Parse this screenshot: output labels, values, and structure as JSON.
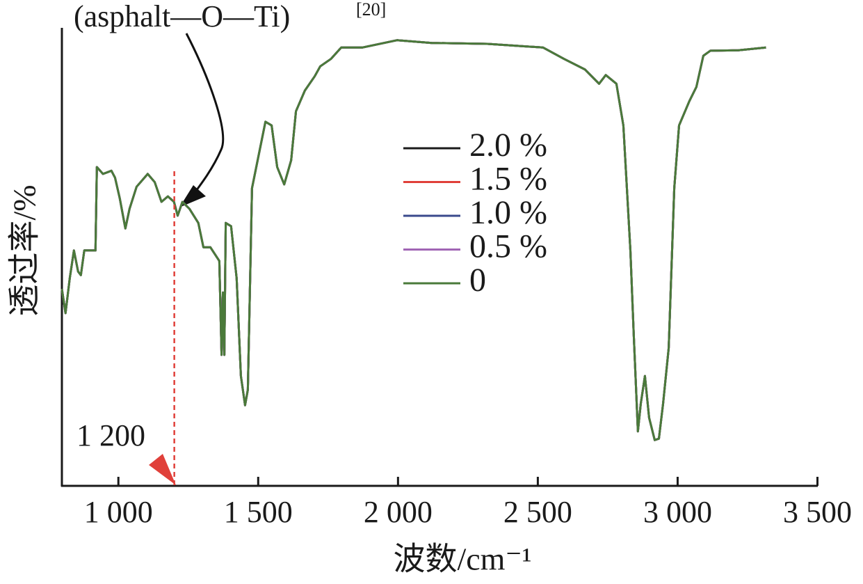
{
  "chart_data": {
    "type": "line",
    "xlabel": "波数/cm⁻¹",
    "ylabel": "透过率/%",
    "xlim": [
      798,
      3500
    ],
    "ylim": [
      0,
      100
    ],
    "xticks": [
      {
        "value": 1000,
        "label": "1 000"
      },
      {
        "value": 1500,
        "label": "1 500"
      },
      {
        "value": 2000,
        "label": "2 000"
      },
      {
        "value": 2500,
        "label": "2 500"
      },
      {
        "value": 3000,
        "label": "3 000"
      },
      {
        "value": 3500,
        "label": "3 500"
      }
    ],
    "annotations": [
      {
        "text": "(asphalt—O—Ti)",
        "ref": "[20]"
      },
      {
        "x": 1200,
        "label": "1 200"
      }
    ],
    "x": [
      798,
      811,
      826,
      841,
      856,
      866,
      878,
      918,
      923,
      945,
      975,
      988,
      1005,
      1025,
      1040,
      1065,
      1105,
      1130,
      1154,
      1177,
      1199,
      1212,
      1229,
      1254,
      1286,
      1304,
      1329,
      1361,
      1369,
      1374,
      1379,
      1384,
      1403,
      1423,
      1438,
      1453,
      1463,
      1478,
      1503,
      1526,
      1548,
      1568,
      1593,
      1618,
      1635,
      1667,
      1702,
      1722,
      1760,
      1797,
      1872,
      1996,
      2121,
      2320,
      2519,
      2594,
      2669,
      2719,
      2743,
      2781,
      2806,
      2831,
      2843,
      2858,
      2868,
      2883,
      2898,
      2918,
      2933,
      2948,
      2968,
      2988,
      3005,
      3042,
      3067,
      3092,
      3117,
      3217,
      3316
    ],
    "series": [
      {
        "name": "2.0 %",
        "color": "#1a1a1a",
        "values": [
          43.0,
          37.7,
          45.3,
          51.4,
          46.8,
          46.0,
          51.4,
          51.4,
          69.6,
          68.1,
          68.8,
          67.3,
          62.8,
          56.2,
          60.5,
          65.3,
          68.1,
          66.3,
          62.0,
          63.2,
          62.0,
          59.0,
          62.0,
          60.5,
          57.4,
          52.1,
          52.1,
          49.1,
          28.6,
          42.2,
          28.6,
          57.4,
          56.7,
          45.3,
          24.0,
          17.6,
          21.0,
          65.0,
          72.6,
          79.5,
          78.7,
          69.6,
          65.8,
          71.1,
          81.8,
          86.3,
          89.4,
          91.6,
          93.2,
          95.7,
          95.7,
          97.3,
          96.7,
          96.5,
          95.7,
          93.2,
          90.9,
          87.8,
          89.7,
          87.8,
          78.7,
          51.4,
          33.1,
          11.9,
          17.9,
          24.0,
          14.9,
          10.0,
          10.3,
          17.9,
          30.1,
          65.0,
          78.7,
          84.0,
          87.1,
          93.9,
          95.0,
          95.1,
          95.7
        ]
      },
      {
        "name": "1.5 %",
        "color": "#e0403a",
        "values": [
          43.0,
          37.7,
          45.3,
          51.4,
          46.8,
          46.0,
          51.4,
          51.4,
          69.6,
          68.1,
          68.8,
          67.3,
          62.8,
          56.2,
          60.5,
          65.3,
          68.1,
          66.3,
          62.0,
          63.2,
          62.0,
          59.0,
          62.0,
          60.5,
          57.4,
          52.1,
          52.1,
          49.1,
          28.6,
          42.2,
          28.6,
          57.4,
          56.7,
          45.3,
          24.0,
          17.6,
          21.0,
          65.0,
          72.6,
          79.5,
          78.7,
          69.6,
          65.8,
          71.1,
          81.8,
          86.3,
          89.4,
          91.6,
          93.2,
          95.7,
          95.7,
          97.3,
          96.7,
          96.5,
          95.7,
          93.2,
          90.9,
          87.8,
          89.7,
          87.8,
          78.7,
          51.4,
          33.1,
          11.9,
          17.9,
          24.0,
          14.9,
          10.0,
          10.3,
          17.9,
          30.1,
          65.0,
          78.7,
          84.0,
          87.1,
          93.9,
          95.0,
          95.1,
          95.7
        ]
      },
      {
        "name": "1.0 %",
        "color": "#3a4a8c",
        "values": [
          43.0,
          37.7,
          45.3,
          51.4,
          46.8,
          46.0,
          51.4,
          51.4,
          69.6,
          68.1,
          68.8,
          67.3,
          62.8,
          56.2,
          60.5,
          65.3,
          68.1,
          66.3,
          62.0,
          63.2,
          62.0,
          59.0,
          62.0,
          60.5,
          57.4,
          52.1,
          52.1,
          49.1,
          28.6,
          42.2,
          28.6,
          57.4,
          56.7,
          45.3,
          24.0,
          17.6,
          21.0,
          65.0,
          72.6,
          79.5,
          78.7,
          69.6,
          65.8,
          71.1,
          81.8,
          86.3,
          89.4,
          91.6,
          93.2,
          95.7,
          95.7,
          97.3,
          96.7,
          96.5,
          95.7,
          93.2,
          90.9,
          87.8,
          89.7,
          87.8,
          78.7,
          51.4,
          33.1,
          11.9,
          17.9,
          24.0,
          14.9,
          10.0,
          10.3,
          17.9,
          30.1,
          65.0,
          78.7,
          84.0,
          87.1,
          93.9,
          95.0,
          95.1,
          95.7
        ]
      },
      {
        "name": "0.5 %",
        "color": "#a064b4",
        "values": [
          43.0,
          37.7,
          45.3,
          51.4,
          46.8,
          46.0,
          51.4,
          51.4,
          69.6,
          68.1,
          68.8,
          67.3,
          62.8,
          56.2,
          60.5,
          65.3,
          68.1,
          66.3,
          62.0,
          63.2,
          62.0,
          59.0,
          62.0,
          60.5,
          57.4,
          52.1,
          52.1,
          49.1,
          28.6,
          42.2,
          28.6,
          57.4,
          56.7,
          45.3,
          24.0,
          17.6,
          21.0,
          65.0,
          72.6,
          79.5,
          78.7,
          69.6,
          65.8,
          71.1,
          81.8,
          86.3,
          89.4,
          91.6,
          93.2,
          95.7,
          95.7,
          97.3,
          96.7,
          96.5,
          95.7,
          93.2,
          90.9,
          87.8,
          89.7,
          87.8,
          78.7,
          51.4,
          33.1,
          11.9,
          17.9,
          24.0,
          14.9,
          10.0,
          10.3,
          17.9,
          30.1,
          65.0,
          78.7,
          84.0,
          87.1,
          93.9,
          95.0,
          95.1,
          95.7
        ]
      },
      {
        "name": "0",
        "color": "#4a7a3a",
        "values": [
          43.0,
          37.7,
          45.3,
          51.4,
          46.8,
          46.0,
          51.4,
          51.4,
          69.6,
          68.1,
          68.8,
          67.3,
          62.8,
          56.2,
          60.5,
          65.3,
          68.1,
          66.3,
          62.0,
          63.2,
          62.0,
          59.0,
          62.0,
          60.5,
          57.4,
          52.1,
          52.1,
          49.1,
          28.6,
          42.2,
          28.6,
          57.4,
          56.7,
          45.3,
          24.0,
          17.6,
          21.0,
          65.0,
          72.6,
          79.5,
          78.7,
          69.6,
          65.8,
          71.1,
          81.8,
          86.3,
          89.4,
          91.6,
          93.2,
          95.7,
          95.7,
          97.3,
          96.7,
          96.5,
          95.7,
          93.2,
          90.9,
          87.8,
          89.7,
          87.8,
          78.7,
          51.4,
          33.1,
          11.9,
          17.9,
          24.0,
          14.9,
          10.0,
          10.3,
          17.9,
          30.1,
          65.0,
          78.7,
          84.0,
          87.1,
          93.9,
          95.0,
          95.1,
          95.7
        ]
      }
    ]
  }
}
